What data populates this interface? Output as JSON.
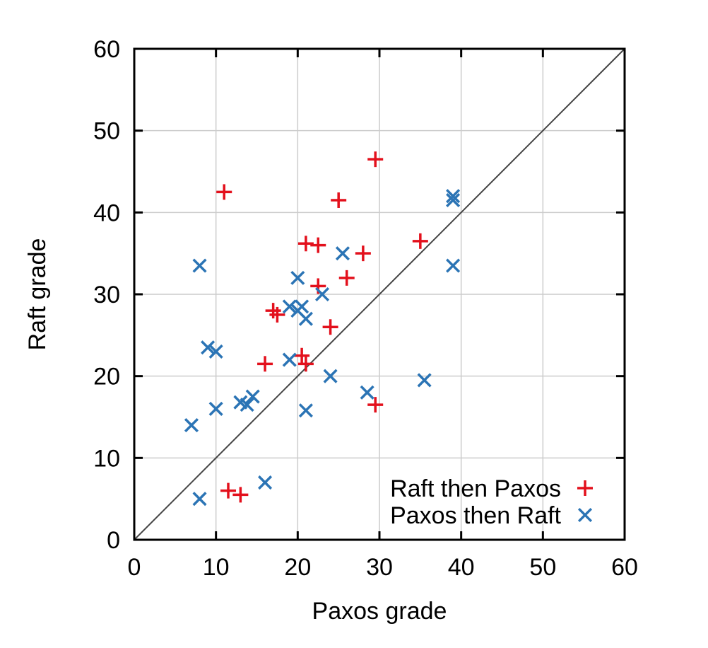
{
  "chart_data": {
    "type": "scatter",
    "xlabel": "Paxos grade",
    "ylabel": "Raft grade",
    "xlim": [
      0,
      60
    ],
    "ylim": [
      0,
      60
    ],
    "xticks": [
      "0",
      "10",
      "20",
      "30",
      "40",
      "50",
      "60"
    ],
    "yticks": [
      "0",
      "10",
      "20",
      "30",
      "40",
      "50",
      "60"
    ],
    "grid": true,
    "legend_position": "bottom-right",
    "reference_line": "y = x",
    "series": [
      {
        "name": "Raft then Paxos",
        "marker": "plus",
        "color": "#e3101c",
        "points": [
          [
            11,
            42.5
          ],
          [
            29.5,
            46.5
          ],
          [
            25,
            41.5
          ],
          [
            21,
            36.2
          ],
          [
            22.5,
            36
          ],
          [
            35,
            36.5
          ],
          [
            28,
            35
          ],
          [
            22.5,
            31
          ],
          [
            26,
            32
          ],
          [
            17,
            28
          ],
          [
            17.5,
            27.5
          ],
          [
            24,
            26
          ],
          [
            16,
            21.5
          ],
          [
            20.5,
            22.5
          ],
          [
            21,
            21.5
          ],
          [
            29.5,
            16.5
          ],
          [
            11.5,
            6
          ],
          [
            13,
            5.5
          ]
        ]
      },
      {
        "name": "Paxos then Raft",
        "marker": "cross",
        "color": "#2b74b5",
        "points": [
          [
            8,
            33.5
          ],
          [
            25.5,
            35
          ],
          [
            39,
            42
          ],
          [
            39,
            41.5
          ],
          [
            39,
            33.5
          ],
          [
            20,
            32
          ],
          [
            23,
            30
          ],
          [
            19,
            28.5
          ],
          [
            20,
            28
          ],
          [
            20.5,
            28.5
          ],
          [
            21,
            27
          ],
          [
            9,
            23.5
          ],
          [
            10,
            23
          ],
          [
            19,
            22
          ],
          [
            24,
            20
          ],
          [
            28.5,
            18
          ],
          [
            35.5,
            19.5
          ],
          [
            13,
            16.8
          ],
          [
            13.8,
            16.5
          ],
          [
            14.5,
            17.5
          ],
          [
            10,
            16
          ],
          [
            21,
            15.8
          ],
          [
            7,
            14
          ],
          [
            16,
            7
          ],
          [
            8,
            5
          ]
        ]
      }
    ]
  }
}
